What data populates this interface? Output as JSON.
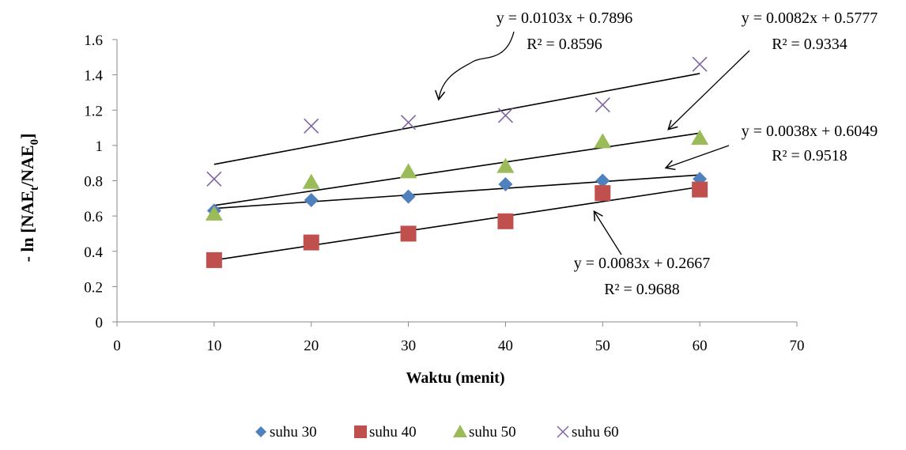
{
  "chart_data": {
    "type": "scatter",
    "title": "",
    "xlabel": "Waktu (menit)",
    "ylabel": {
      "prefix": "- ln [NAE",
      "sub1": "t",
      "mid": "/NAE",
      "sub2": "0",
      "suffix": "]"
    },
    "xlim": [
      0,
      70
    ],
    "ylim": [
      0,
      1.6
    ],
    "x_ticks": [
      0,
      10,
      20,
      30,
      40,
      50,
      60,
      70
    ],
    "y_ticks": [
      0,
      0.2,
      0.4,
      0.6,
      0.8,
      1,
      1.2,
      1.4,
      1.6
    ],
    "x_tick_labels": [
      "0",
      "10",
      "20",
      "30",
      "40",
      "50",
      "60",
      "70"
    ],
    "y_tick_labels": [
      "0",
      "0.2",
      "0.4",
      "0.6",
      "0.8",
      "1",
      "1.2",
      "1.4",
      "1.6"
    ],
    "grid": false,
    "legend_position": "bottom",
    "x": [
      10,
      20,
      30,
      40,
      50,
      60
    ],
    "series": [
      {
        "name": "suhu 30",
        "marker": "diamond",
        "color": "#4F81BD",
        "values": [
          0.63,
          0.69,
          0.71,
          0.78,
          0.8,
          0.81
        ],
        "trendline": {
          "slope": 0.0038,
          "intercept": 0.6049,
          "equation": "y = 0.0038x + 0.6049",
          "r2": "R² = 0.9518"
        }
      },
      {
        "name": "suhu 40",
        "marker": "square",
        "color": "#C0504D",
        "values": [
          0.35,
          0.45,
          0.5,
          0.57,
          0.73,
          0.75
        ],
        "trendline": {
          "slope": 0.0083,
          "intercept": 0.2667,
          "equation": "y = 0.0083x + 0.2667",
          "r2": "R² = 0.9688"
        }
      },
      {
        "name": "suhu 50",
        "marker": "triangle",
        "color": "#9BBB59",
        "values": [
          0.61,
          0.79,
          0.85,
          0.88,
          1.02,
          1.04
        ],
        "trendline": {
          "slope": 0.0082,
          "intercept": 0.5777,
          "equation": "y = 0.0082x + 0.5777",
          "r2": "R² = 0.9334"
        }
      },
      {
        "name": "suhu 60",
        "marker": "x",
        "color": "#8064A2",
        "values": [
          0.81,
          1.11,
          1.13,
          1.17,
          1.23,
          1.46
        ],
        "trendline": {
          "slope": 0.0103,
          "intercept": 0.7896,
          "equation": "y = 0.0103x + 0.7896",
          "r2": "R² = 0.8596"
        }
      }
    ]
  }
}
